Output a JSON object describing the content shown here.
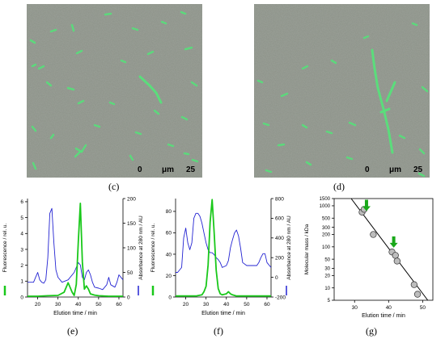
{
  "panels": {
    "c": "(c)",
    "d": "(d)",
    "e": "(e)",
    "f": "(f)",
    "g": "(g)"
  },
  "micrographs": {
    "c": {
      "scale_start": "0",
      "scale_unit": "μm",
      "scale_end": "25"
    },
    "d": {
      "scale_start": "0",
      "scale_unit": "μm",
      "scale_end": "25"
    }
  },
  "colors": {
    "micro_bg": "#8b9187",
    "fluorescence": "#19c81a",
    "absorbance": "#2323d2",
    "fibril": "#57e07a",
    "marker_fill": "#bdbdbd",
    "arrow": "#19a81a"
  },
  "chart_data": [
    {
      "panel": "e",
      "type": "line",
      "xlabel": "Elution time / min",
      "ylabel_left": "Fluorescence / rel. u.",
      "ylabel_right": "Absorbance at 280 nm / AU",
      "xlim": [
        15,
        62
      ],
      "ylim_left": [
        0,
        6.2
      ],
      "ylim_right": [
        0,
        200
      ],
      "xticks": [
        20,
        30,
        40,
        50,
        60
      ],
      "yticks_left": [
        0,
        1,
        2,
        3,
        4,
        5,
        6
      ],
      "yticks_right": [
        0,
        50,
        100,
        150,
        200
      ],
      "series": [
        {
          "axis": "left",
          "color": "#19c81a",
          "x": [
            15,
            20,
            25,
            30,
            33,
            35,
            36,
            37,
            38,
            39,
            40,
            41,
            42,
            43,
            44,
            45,
            46,
            48,
            50,
            55,
            60,
            62
          ],
          "y": [
            0.05,
            0.05,
            0.08,
            0.1,
            0.3,
            0.9,
            0.6,
            0.3,
            0.1,
            0.8,
            3.5,
            5.9,
            2.2,
            0.5,
            0.7,
            0.5,
            0.2,
            0.12,
            0.08,
            0.05,
            0.05,
            0.05
          ]
        },
        {
          "axis": "right",
          "color": "#2323d2",
          "x": [
            15,
            18,
            19,
            20,
            21,
            22,
            23,
            24,
            25,
            26,
            27,
            28,
            29,
            30,
            32,
            35,
            38,
            40,
            41,
            42,
            43,
            44,
            45,
            46,
            47,
            48,
            50,
            52,
            54,
            55,
            56,
            58,
            59,
            60,
            62
          ],
          "y": [
            30,
            30,
            40,
            50,
            35,
            30,
            28,
            35,
            80,
            170,
            180,
            110,
            55,
            40,
            30,
            35,
            50,
            70,
            65,
            40,
            35,
            50,
            55,
            45,
            30,
            20,
            18,
            15,
            25,
            40,
            25,
            20,
            30,
            45,
            35
          ]
        }
      ]
    },
    {
      "panel": "f",
      "type": "line",
      "xlabel": "Elution time / min",
      "ylabel_left": "Fluorescence / rel. u.",
      "ylabel_right": "Absorbance at 280 nm / AU",
      "xlim": [
        15,
        62
      ],
      "ylim_left": [
        0,
        92
      ],
      "ylim_right": [
        -200,
        800
      ],
      "xticks": [
        20,
        30,
        40,
        50,
        60
      ],
      "yticks_left": [
        0,
        20,
        40,
        60,
        80
      ],
      "yticks_right": [
        -200,
        0,
        200,
        400,
        600,
        800
      ],
      "series": [
        {
          "axis": "left",
          "color": "#19c81a",
          "x": [
            15,
            20,
            25,
            28,
            29,
            30,
            31,
            32,
            33,
            34,
            35,
            36,
            37,
            38,
            40,
            41,
            42,
            43,
            45,
            50,
            55,
            60,
            62
          ],
          "y": [
            1,
            1,
            1,
            2,
            5,
            10,
            30,
            70,
            91,
            60,
            25,
            8,
            3,
            2,
            3,
            5,
            3,
            2,
            1,
            1,
            1,
            1,
            1
          ]
        },
        {
          "axis": "right",
          "color": "#2323d2",
          "x": [
            15,
            16,
            18,
            19,
            20,
            21,
            22,
            23,
            24,
            25,
            26,
            27,
            28,
            29,
            30,
            31,
            32,
            33,
            34,
            35,
            36,
            37,
            38,
            40,
            41,
            42,
            43,
            44,
            45,
            46,
            47,
            48,
            50,
            55,
            56,
            57,
            58,
            59,
            60,
            62
          ],
          "y": [
            50,
            50,
            100,
            400,
            500,
            350,
            280,
            350,
            600,
            650,
            650,
            620,
            550,
            450,
            350,
            280,
            250,
            250,
            230,
            200,
            180,
            150,
            100,
            120,
            170,
            300,
            380,
            450,
            480,
            420,
            300,
            150,
            120,
            120,
            150,
            200,
            240,
            240,
            150,
            100
          ]
        }
      ]
    },
    {
      "panel": "g",
      "type": "scatter",
      "xlabel": "Elution time / min",
      "ylabel": "Molecular mass / kDa",
      "xlim": [
        24,
        53
      ],
      "ylim": [
        5,
        1500
      ],
      "yscale": "log",
      "xticks": [
        30,
        40,
        50
      ],
      "yticks": [
        5,
        10,
        20,
        30,
        50,
        100,
        200,
        300,
        500,
        1000,
        1500
      ],
      "points": {
        "x": [
          32.2,
          32.8,
          35.5,
          41.0,
          42.0,
          42.5,
          47.5,
          48.5
        ],
        "y": [
          700,
          820,
          200,
          75,
          62,
          45,
          12,
          7
        ]
      },
      "fit_line": {
        "x": [
          29,
          51.5
        ],
        "y": [
          1500,
          5
        ]
      },
      "arrows_x": [
        33.5,
        41.5
      ]
    }
  ]
}
